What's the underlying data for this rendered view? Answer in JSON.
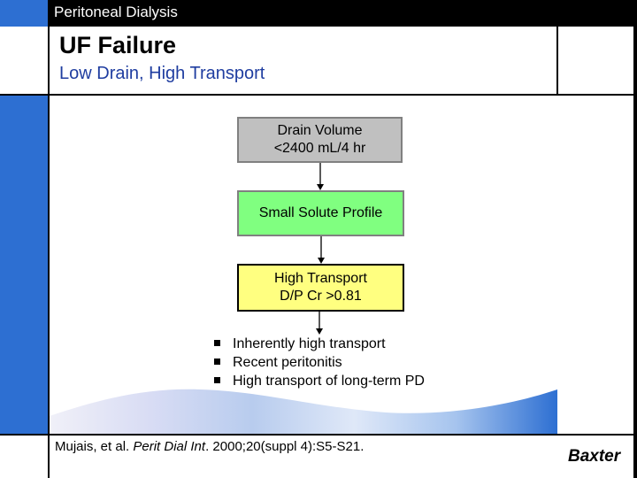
{
  "header": {
    "section_title": "Peritoneal Dialysis"
  },
  "slide": {
    "title": "UF Failure",
    "subtitle": "Low Drain, High Transport"
  },
  "flowchart": {
    "boxes": [
      {
        "line1": "Drain Volume",
        "line2": "<2400 mL/4 hr",
        "fill": "#c0c0c0"
      },
      {
        "line1": "Small Solute Profile",
        "line2": "",
        "fill": "#80ff80"
      },
      {
        "line1": "High Transport",
        "line2": "D/P Cr >0.81",
        "fill": "#ffff80"
      }
    ],
    "bullets": [
      "Inherently high transport",
      "Recent peritonitis",
      "High transport of long-term  PD"
    ]
  },
  "footer": {
    "citation_authors": "Mujais, et al. ",
    "citation_journal": "Perit Dial Int",
    "citation_rest": ". 2000;20(suppl 4):S5-S21.",
    "logo_text": "Baxter"
  },
  "colors": {
    "accent_blue": "#2d6fd2",
    "subtitle_blue": "#1f3da0",
    "header_bg": "#000000"
  }
}
